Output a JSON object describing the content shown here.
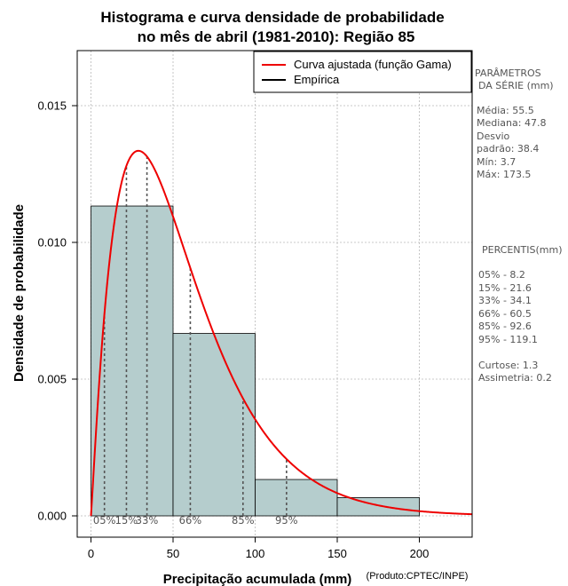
{
  "chart_data": {
    "type": "histogram",
    "title_line1": "Histograma e curva densidade de probabilidade",
    "title_line2": "no mês de abril (1981-2010): Região 85",
    "xlabel": "Precipitação acumulada (mm)",
    "ylabel": "Densidade de probabilidade",
    "credit": "(Produto:CPTEC/INPE)",
    "xlim": [
      -8,
      232
    ],
    "ylim": [
      0,
      0.017
    ],
    "x_ticks": [
      0,
      50,
      100,
      150,
      200
    ],
    "y_ticks": [
      0.0,
      0.005,
      0.01,
      0.015
    ],
    "y_tick_labels": [
      "0.000",
      "0.005",
      "0.010",
      "0.015"
    ],
    "grid": true,
    "bins": [
      {
        "start": 0,
        "end": 50,
        "density": 0.01133
      },
      {
        "start": 50,
        "end": 100,
        "density": 0.00667
      },
      {
        "start": 100,
        "end": 150,
        "density": 0.00133
      },
      {
        "start": 150,
        "end": 200,
        "density": 0.00067
      }
    ],
    "bar_color": "#b5cdcd",
    "curve": {
      "name": "Curva ajustada (função Gama)",
      "color": "#ee0000",
      "shape": 2.09,
      "scale": 26.5,
      "peak_density": 0.01335
    },
    "legend": [
      {
        "label": "Curva ajustada (função Gama)",
        "color": "#ee0000"
      },
      {
        "label": "Empírica",
        "color": "#000000"
      }
    ],
    "percentiles": [
      {
        "label": "05%",
        "value": 8.2
      },
      {
        "label": "15%",
        "value": 21.6
      },
      {
        "label": "33%",
        "value": 34.1
      },
      {
        "label": "66%",
        "value": 60.5
      },
      {
        "label": "85%",
        "value": 92.6
      },
      {
        "label": "95%",
        "value": 119.1
      }
    ]
  },
  "side_panel": {
    "params_title_1": "PARÂMETROS",
    "params_title_2": "DA SÉRIE (mm)",
    "media": "Média:  55.5",
    "mediana": "Mediana:  47.8",
    "desvio_1": "Desvio",
    "desvio_2": "padrão:  38.4",
    "min": "Mín:  3.7",
    "max": "Máx:  173.5",
    "percentis_title": "PERCENTIS(mm)",
    "p05": "05% -  8.2",
    "p15": "15% -  21.6",
    "p33": "33% -  34.1",
    "p66": "66% -  60.5",
    "p85": "85% -  92.6",
    "p95": "95% -  119.1",
    "curtose": "Curtose:  1.3",
    "assimetria": "Assimetria:  0.2"
  }
}
